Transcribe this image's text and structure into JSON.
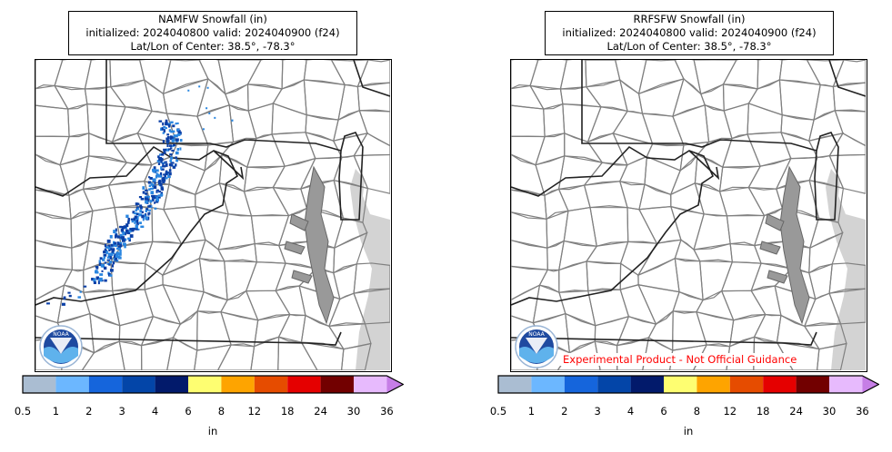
{
  "panels": [
    {
      "id": "namfw",
      "title_line1": "NAMFW Snowfall (in)",
      "title_line2": "initialized: 2024040800 valid: 2024040900 (f24)",
      "title_line3": "Lat/Lon of Center: 38.5°, -78.3°",
      "has_snow": true,
      "disclaimer": ""
    },
    {
      "id": "rrfsfw",
      "title_line1": "RRFSFW Snowfall (in)",
      "title_line2": "initialized: 2024040800 valid: 2024040900 (f24)",
      "title_line3": "Lat/Lon of Center: 38.5°, -78.3°",
      "has_snow": false,
      "disclaimer": "Experimental Product - Not Official Guidance"
    }
  ],
  "logo_text": "NOAA",
  "colorbar": {
    "units": "in",
    "ticks": [
      "0.5",
      "1",
      "2",
      "3",
      "4",
      "6",
      "8",
      "12",
      "18",
      "24",
      "30",
      "36"
    ],
    "colors": [
      "#aabdd2",
      "#6cb7ff",
      "#1565dc",
      "#0345a8",
      "#021a6b",
      "#fefe71",
      "#fea400",
      "#e64c00",
      "#e50000",
      "#720000",
      "#e7bafd"
    ],
    "extend_color": "#c67ee6"
  },
  "colors": {
    "water": "#d3d3d3",
    "border": "#808080",
    "state": "#222222",
    "snow_dark": "#0a3fa6",
    "snow_light": "#2a86e0"
  }
}
